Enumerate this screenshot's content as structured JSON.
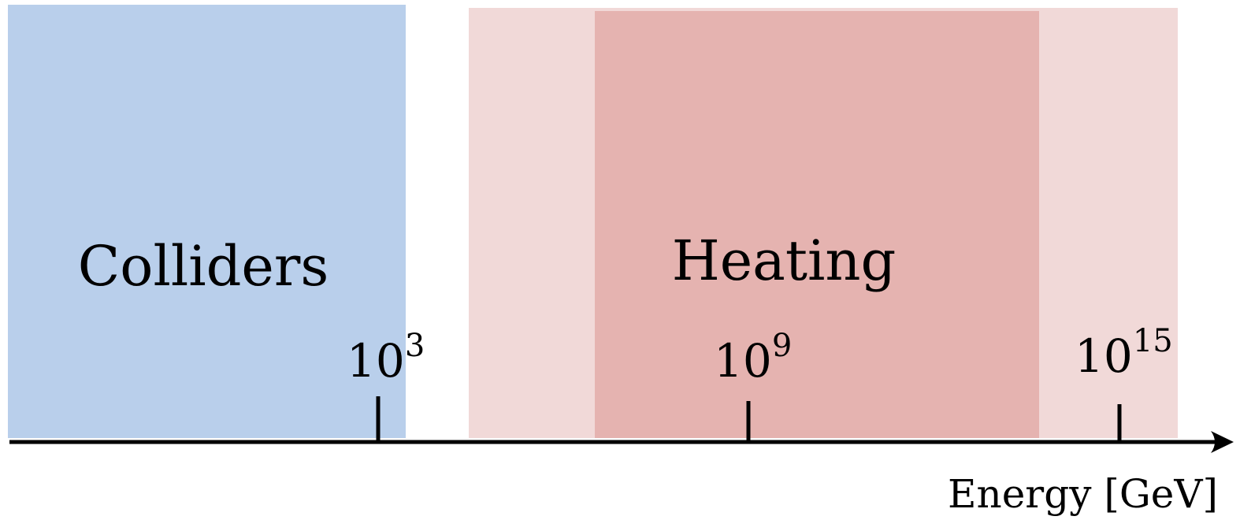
{
  "diagram": {
    "regions": [
      {
        "label": "Colliders",
        "color": "#b9cfeb"
      },
      {
        "label": "",
        "color": "#f1d9d8"
      },
      {
        "label": "Heating",
        "color": "#e5b3b0"
      }
    ],
    "axis": {
      "label": "Energy [GeV]",
      "ticks": [
        {
          "base": "10",
          "exponent": "3"
        },
        {
          "base": "10",
          "exponent": "9"
        },
        {
          "base": "10",
          "exponent": "15"
        }
      ]
    }
  }
}
